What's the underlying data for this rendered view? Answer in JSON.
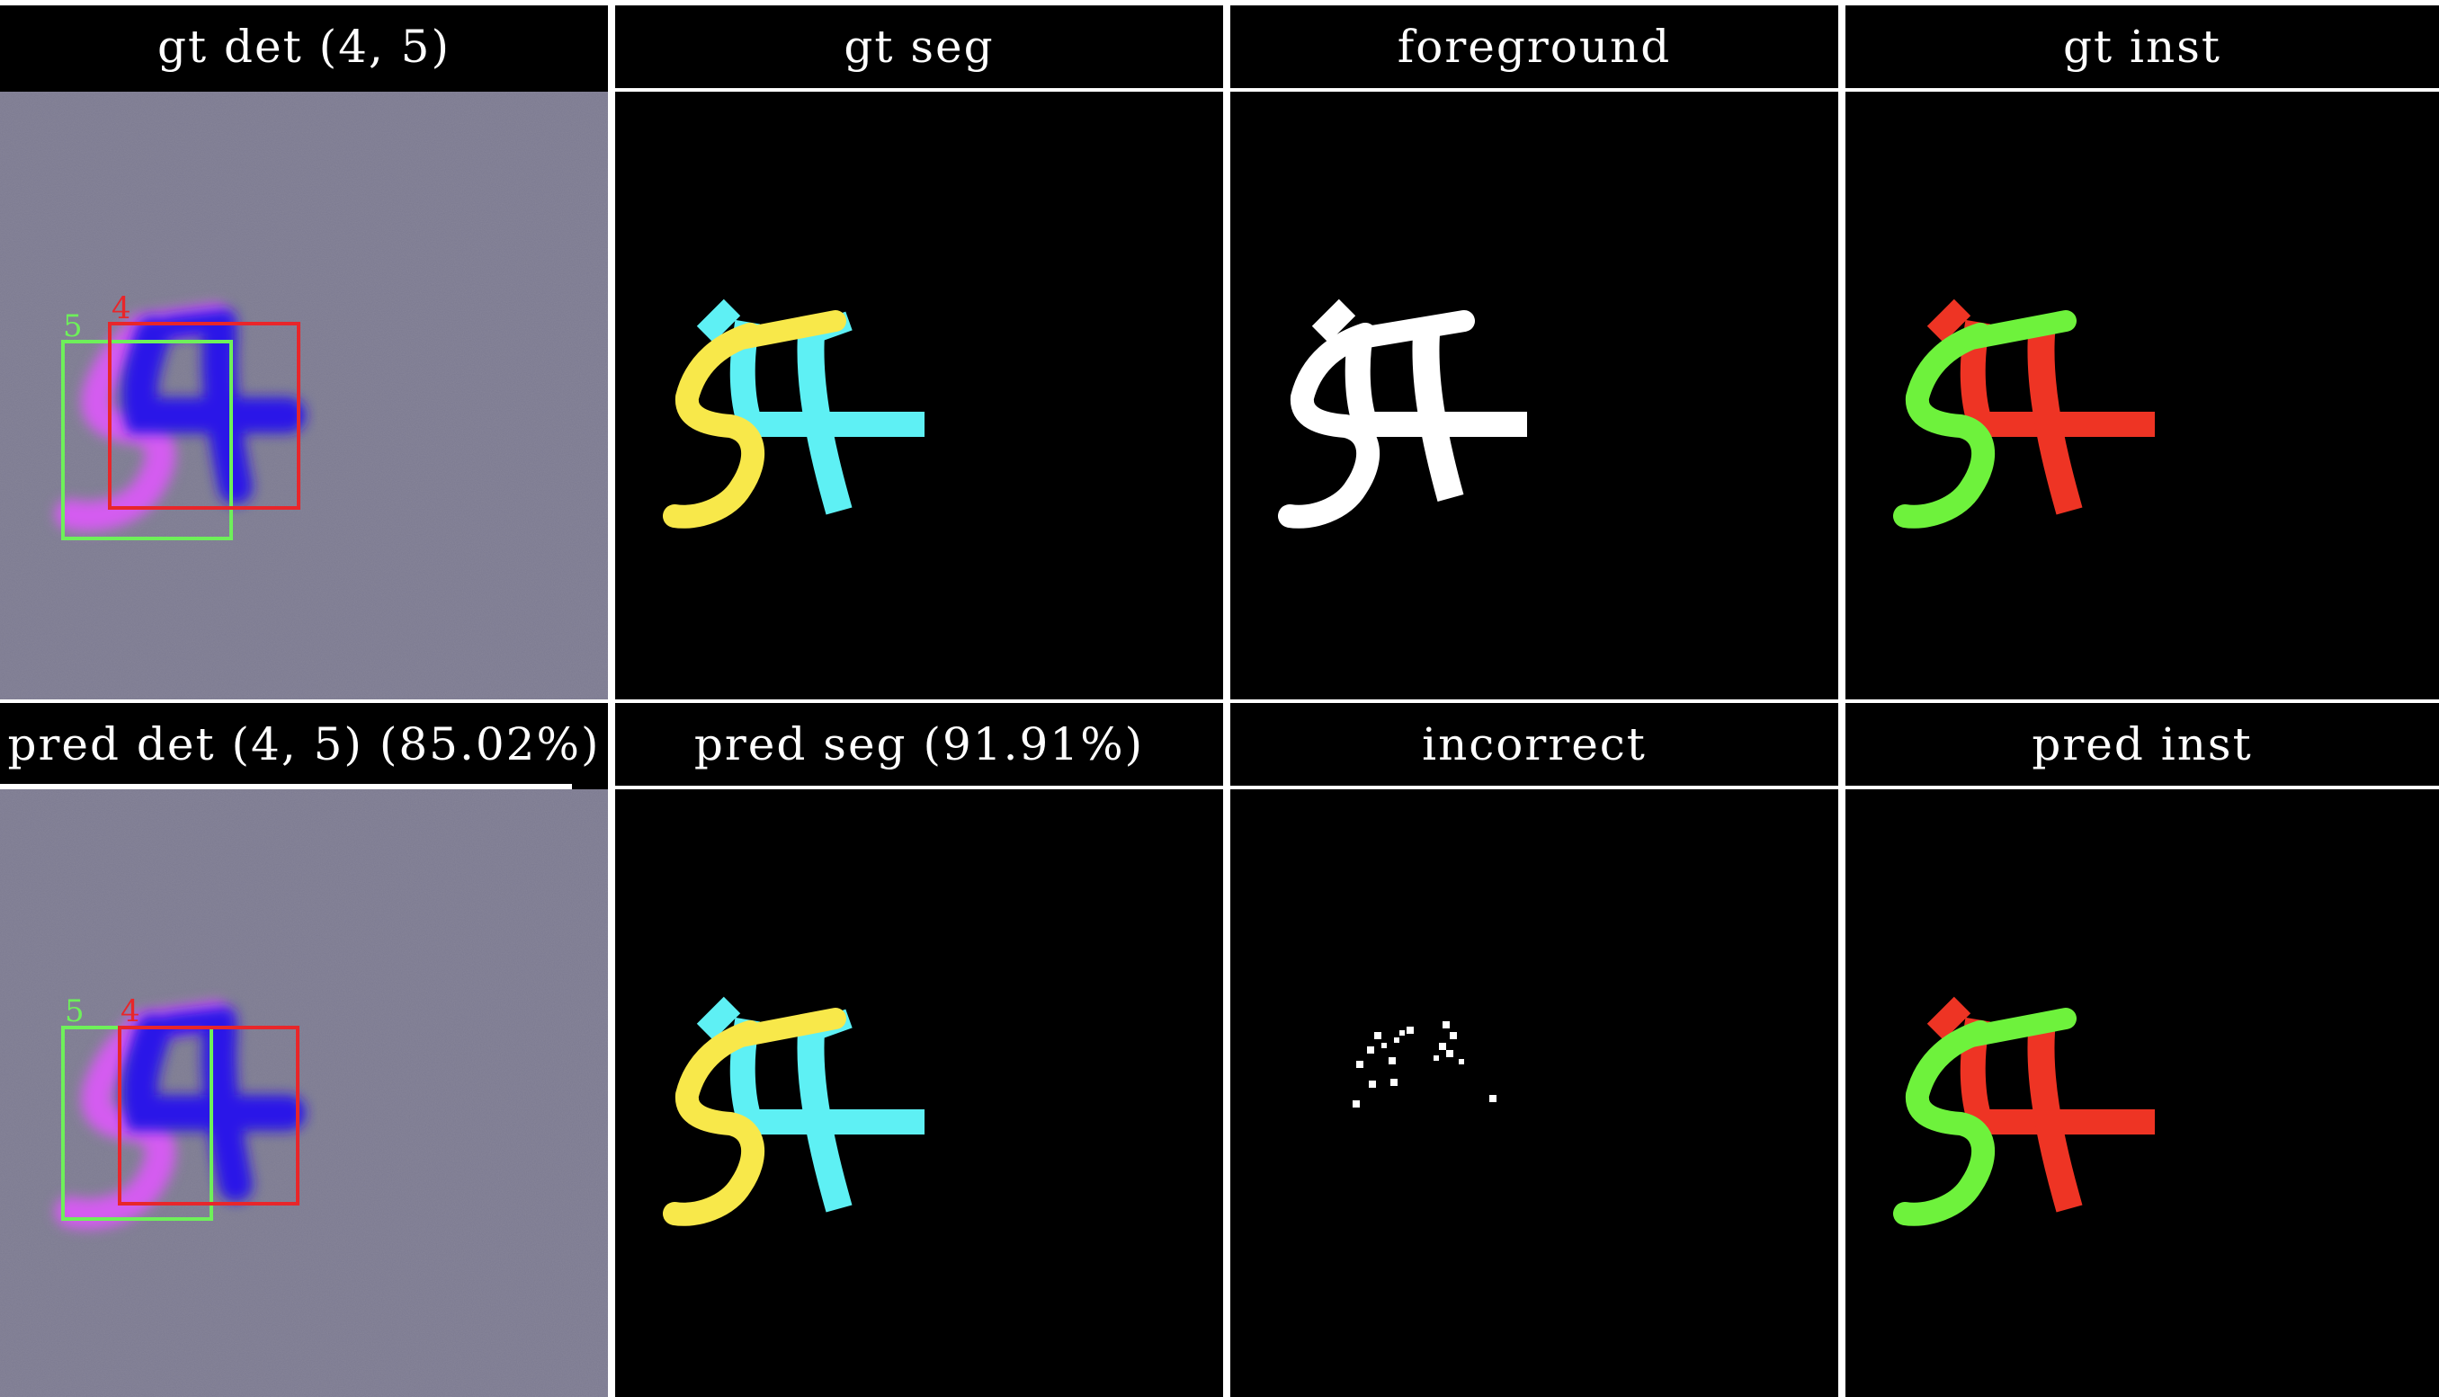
{
  "panels": {
    "gt_det": {
      "title": "gt det (4, 5)",
      "box_labels": [
        "5",
        "4"
      ]
    },
    "gt_seg": {
      "title": "gt seg"
    },
    "foreground": {
      "title": "foreground"
    },
    "gt_inst": {
      "title": "gt inst"
    },
    "pred_det": {
      "title": "pred det (4, 5) (85.02%)",
      "box_labels": [
        "5",
        "4"
      ]
    },
    "pred_seg": {
      "title": "pred seg (91.91%)"
    },
    "incorrect": {
      "title": "incorrect"
    },
    "pred_inst": {
      "title": "pred inst"
    }
  },
  "colors": {
    "background_gray": "#7c7a90",
    "digit4_blue": "#2a16e8",
    "digit5_magenta": "#d45cf0",
    "box_green": "#6ef05a",
    "box_red": "#e8262a",
    "seg_yellow": "#f8e84a",
    "seg_cyan": "#5ef0f4",
    "inst_green": "#6ef23c",
    "inst_red": "#ee3424",
    "foreground_white": "#ffffff"
  }
}
